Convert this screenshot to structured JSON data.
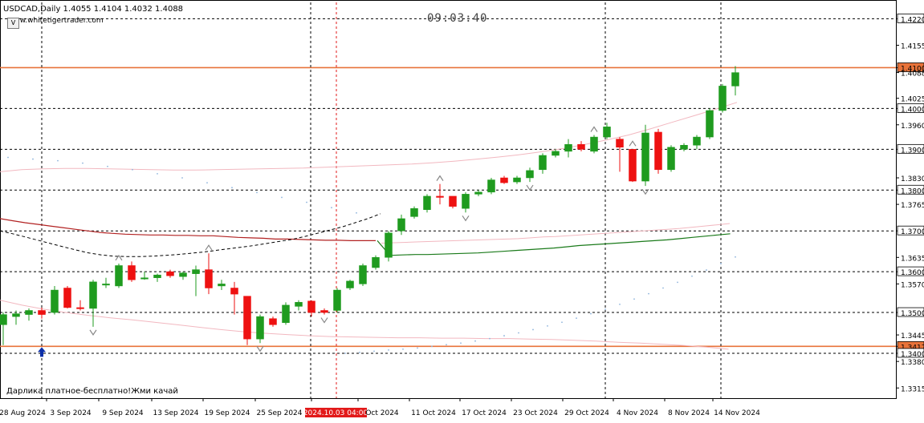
{
  "header": {
    "symbol_info": "USDCAD,Daily  1.4055 1.4104 1.4032 1.4088",
    "website": "www.whitetigertrader.com",
    "clock": "09:03:40",
    "promo": "Дарлика платное-бесплатно!Жми качай",
    "menu_button": "V"
  },
  "colors": {
    "bull": "#1f9b1f",
    "bear": "#ee1111",
    "background": "#ffffff",
    "grid": "#000000",
    "level_line": "#e8733a",
    "ma_red": "#b22222",
    "ma_green": "#1a7a1a",
    "band_pink": "#f2b8c0",
    "dots_blue": "#8fb4dc",
    "price_box_bg": "#ffffff",
    "time_highlight_bg": "#e21a1a"
  },
  "price_axis": {
    "labels": [
      {
        "value": 1.422,
        "label": "1.4220",
        "boxed": true
      },
      {
        "value": 1.4155,
        "label": "1.4155",
        "boxed": false
      },
      {
        "value": 1.41,
        "label": "1.4100",
        "boxed": true
      },
      {
        "value": 1.4088,
        "label": "1.4088",
        "boxed": false
      },
      {
        "value": 1.4025,
        "label": "1.4025",
        "boxed": false
      },
      {
        "value": 1.4,
        "label": "1.4000",
        "boxed": true
      },
      {
        "value": 1.396,
        "label": "1.3960",
        "boxed": false
      },
      {
        "value": 1.39,
        "label": "1.3900",
        "boxed": true
      },
      {
        "value": 1.383,
        "label": "1.3830",
        "boxed": false
      },
      {
        "value": 1.38,
        "label": "1.3800",
        "boxed": true
      },
      {
        "value": 1.3765,
        "label": "1.3765",
        "boxed": false
      },
      {
        "value": 1.37,
        "label": "1.3700",
        "boxed": true
      },
      {
        "value": 1.3635,
        "label": "1.3635",
        "boxed": false
      },
      {
        "value": 1.36,
        "label": "1.3600",
        "boxed": true
      },
      {
        "value": 1.357,
        "label": "1.3570",
        "boxed": false
      },
      {
        "value": 1.35,
        "label": "1.3500",
        "boxed": true
      },
      {
        "value": 1.3445,
        "label": "1.3445",
        "boxed": false
      },
      {
        "value": 1.3417,
        "label": "1.3417",
        "boxed": true
      },
      {
        "value": 1.34,
        "label": "1.3400",
        "boxed": true
      },
      {
        "value": 1.338,
        "label": "1.3380",
        "boxed": false
      },
      {
        "value": 1.3315,
        "label": "1.3315",
        "boxed": false
      }
    ],
    "grid_levels": [
      1.422,
      1.4,
      1.39,
      1.38,
      1.37,
      1.36,
      1.35,
      1.34
    ],
    "orange_levels": [
      1.41,
      1.3417
    ]
  },
  "time_axis": {
    "labels": [
      "28 Aug 2024",
      "3 Sep 2024",
      "9 Sep 2024",
      "13 Sep 2024",
      "19 Sep 2024",
      "25 Sep 2024",
      "2024.10.03 04:00",
      "Oct 2024",
      "11 Oct 2024",
      "17 Oct 2024",
      "23 Oct 2024",
      "29 Oct 2024",
      "4 Nov 2024",
      "8 Nov 2024",
      "14 Nov 2024"
    ],
    "highlight_label": "2024.10.03 04:00",
    "vertical_grid_labels": [
      "3 Sep 2024",
      "25 Sep 2024",
      "29 Oct 2024",
      "14 Nov 2024"
    ],
    "crosshair_label": "2024.10.03 04:00"
  },
  "chart_data": {
    "type": "candlestick",
    "title": "USDCAD,Daily",
    "ylim": [
      1.329,
      1.426
    ],
    "candles": [
      {
        "o": 1.347,
        "h": 1.35,
        "l": 1.342,
        "c": 1.3495
      },
      {
        "o": 1.349,
        "h": 1.3505,
        "l": 1.347,
        "c": 1.3497
      },
      {
        "o": 1.3495,
        "h": 1.351,
        "l": 1.348,
        "c": 1.3505
      },
      {
        "o": 1.3505,
        "h": 1.3512,
        "l": 1.3485,
        "c": 1.3495
      },
      {
        "o": 1.35,
        "h": 1.3565,
        "l": 1.3495,
        "c": 1.3555
      },
      {
        "o": 1.356,
        "h": 1.3565,
        "l": 1.351,
        "c": 1.3512
      },
      {
        "o": 1.3512,
        "h": 1.353,
        "l": 1.3505,
        "c": 1.351
      },
      {
        "o": 1.351,
        "h": 1.358,
        "l": 1.3465,
        "c": 1.3575
      },
      {
        "o": 1.357,
        "h": 1.3585,
        "l": 1.356,
        "c": 1.357
      },
      {
        "o": 1.3565,
        "h": 1.362,
        "l": 1.356,
        "c": 1.3615
      },
      {
        "o": 1.3615,
        "h": 1.3625,
        "l": 1.3575,
        "c": 1.358
      },
      {
        "o": 1.3583,
        "h": 1.36,
        "l": 1.358,
        "c": 1.3585
      },
      {
        "o": 1.3585,
        "h": 1.3595,
        "l": 1.3575,
        "c": 1.3592
      },
      {
        "o": 1.36,
        "h": 1.3605,
        "l": 1.3585,
        "c": 1.359
      },
      {
        "o": 1.3588,
        "h": 1.36,
        "l": 1.358,
        "c": 1.3597
      },
      {
        "o": 1.3595,
        "h": 1.3615,
        "l": 1.354,
        "c": 1.3605
      },
      {
        "o": 1.3605,
        "h": 1.3645,
        "l": 1.3545,
        "c": 1.356
      },
      {
        "o": 1.3565,
        "h": 1.358,
        "l": 1.3555,
        "c": 1.357
      },
      {
        "o": 1.356,
        "h": 1.3575,
        "l": 1.3495,
        "c": 1.3545
      },
      {
        "o": 1.354,
        "h": 1.354,
        "l": 1.342,
        "c": 1.3435
      },
      {
        "o": 1.3435,
        "h": 1.3495,
        "l": 1.3425,
        "c": 1.349
      },
      {
        "o": 1.3485,
        "h": 1.349,
        "l": 1.3465,
        "c": 1.347
      },
      {
        "o": 1.3475,
        "h": 1.3525,
        "l": 1.347,
        "c": 1.3518
      },
      {
        "o": 1.3515,
        "h": 1.353,
        "l": 1.3505,
        "c": 1.3525
      },
      {
        "o": 1.3528,
        "h": 1.353,
        "l": 1.349,
        "c": 1.35
      },
      {
        "o": 1.3505,
        "h": 1.351,
        "l": 1.3495,
        "c": 1.35
      },
      {
        "o": 1.3505,
        "h": 1.356,
        "l": 1.35,
        "c": 1.3555
      },
      {
        "o": 1.356,
        "h": 1.358,
        "l": 1.3555,
        "c": 1.3577
      },
      {
        "o": 1.357,
        "h": 1.362,
        "l": 1.3565,
        "c": 1.3615
      },
      {
        "o": 1.361,
        "h": 1.364,
        "l": 1.3605,
        "c": 1.3635
      },
      {
        "o": 1.3635,
        "h": 1.37,
        "l": 1.3625,
        "c": 1.3695
      },
      {
        "o": 1.37,
        "h": 1.374,
        "l": 1.369,
        "c": 1.373
      },
      {
        "o": 1.3735,
        "h": 1.376,
        "l": 1.373,
        "c": 1.3755
      },
      {
        "o": 1.3752,
        "h": 1.379,
        "l": 1.3745,
        "c": 1.3785
      },
      {
        "o": 1.3785,
        "h": 1.3815,
        "l": 1.3765,
        "c": 1.3782
      },
      {
        "o": 1.3785,
        "h": 1.378,
        "l": 1.3755,
        "c": 1.376
      },
      {
        "o": 1.3755,
        "h": 1.3795,
        "l": 1.3745,
        "c": 1.379
      },
      {
        "o": 1.379,
        "h": 1.38,
        "l": 1.3785,
        "c": 1.3795
      },
      {
        "o": 1.3795,
        "h": 1.383,
        "l": 1.379,
        "c": 1.3825
      },
      {
        "o": 1.383,
        "h": 1.3835,
        "l": 1.3815,
        "c": 1.3818
      },
      {
        "o": 1.382,
        "h": 1.3835,
        "l": 1.3815,
        "c": 1.383
      },
      {
        "o": 1.383,
        "h": 1.3855,
        "l": 1.382,
        "c": 1.3848
      },
      {
        "o": 1.385,
        "h": 1.389,
        "l": 1.384,
        "c": 1.3885
      },
      {
        "o": 1.3885,
        "h": 1.39,
        "l": 1.388,
        "c": 1.3895
      },
      {
        "o": 1.3895,
        "h": 1.3925,
        "l": 1.388,
        "c": 1.3912
      },
      {
        "o": 1.3912,
        "h": 1.392,
        "l": 1.3895,
        "c": 1.39
      },
      {
        "o": 1.3895,
        "h": 1.3935,
        "l": 1.389,
        "c": 1.393
      },
      {
        "o": 1.393,
        "h": 1.3965,
        "l": 1.3925,
        "c": 1.3955
      },
      {
        "o": 1.3925,
        "h": 1.393,
        "l": 1.3845,
        "c": 1.3905
      },
      {
        "o": 1.39,
        "h": 1.39,
        "l": 1.382,
        "c": 1.3822
      },
      {
        "o": 1.3822,
        "h": 1.396,
        "l": 1.381,
        "c": 1.394
      },
      {
        "o": 1.3942,
        "h": 1.395,
        "l": 1.384,
        "c": 1.385
      },
      {
        "o": 1.385,
        "h": 1.391,
        "l": 1.3845,
        "c": 1.3905
      },
      {
        "o": 1.39,
        "h": 1.3915,
        "l": 1.3895,
        "c": 1.391
      },
      {
        "o": 1.391,
        "h": 1.3935,
        "l": 1.39,
        "c": 1.393
      },
      {
        "o": 1.393,
        "h": 1.4,
        "l": 1.3925,
        "c": 1.3995
      },
      {
        "o": 1.3995,
        "h": 1.406,
        "l": 1.399,
        "c": 1.4055
      },
      {
        "o": 1.4055,
        "h": 1.4104,
        "l": 1.4032,
        "c": 1.4088
      }
    ],
    "ma_red_points": [
      1.373,
      1.3725,
      1.372,
      1.3716,
      1.3712,
      1.3708,
      1.3704,
      1.37,
      1.3696,
      1.3694,
      1.3692,
      1.3691,
      1.369,
      1.369,
      1.3689,
      1.3689,
      1.3688,
      1.3688,
      1.3686,
      1.3684,
      1.3683,
      1.3682,
      1.368,
      1.368,
      1.3679,
      1.3678,
      1.3677,
      1.3677,
      1.3676,
      1.3676,
      1.3676
    ],
    "ma_green_points": [
      1.3676,
      1.364,
      1.3641,
      1.3642,
      1.3642,
      1.3643,
      1.3644,
      1.3645,
      1.3646,
      1.3648,
      1.365,
      1.3652,
      1.3654,
      1.3656,
      1.3658,
      1.3661,
      1.3664,
      1.3666,
      1.3668,
      1.367,
      1.3672,
      1.3674,
      1.3676,
      1.3678,
      1.3681,
      1.3684,
      1.3687,
      1.369,
      1.3693
    ],
    "ma_black_dashed_points": [
      1.37,
      1.3693,
      1.3685,
      1.3677,
      1.3669,
      1.3661,
      1.3653,
      1.3646,
      1.3641,
      1.3638,
      1.3637,
      1.3637,
      1.3638,
      1.364,
      1.3642,
      1.3645,
      1.3648,
      1.3652,
      1.3656,
      1.366,
      1.3664,
      1.3669,
      1.3674,
      1.3679,
      1.3686,
      1.3694,
      1.3702,
      1.371,
      1.372,
      1.373,
      1.3742
    ],
    "band_upper_points": [
      1.3845,
      1.385,
      1.3852,
      1.3853,
      1.3853,
      1.3852,
      1.3851,
      1.385,
      1.3849,
      1.3849,
      1.385,
      1.3851,
      1.3852,
      1.3853,
      1.3854,
      1.3856,
      1.3858,
      1.386,
      1.3862,
      1.3864,
      1.3867,
      1.3871,
      1.3876,
      1.3881,
      1.3887,
      1.3894,
      1.3902,
      1.3912,
      1.3923,
      1.3935,
      1.395,
      1.3966,
      1.3982,
      1.3998,
      1.4015
    ],
    "band_lower_points": [
      1.353,
      1.3518,
      1.3508,
      1.35,
      1.3493,
      1.3487,
      1.3482,
      1.3476,
      1.347,
      1.3464,
      1.3458,
      1.3453,
      1.3449,
      1.3446,
      1.3443,
      1.3441,
      1.344,
      1.3439,
      1.3438,
      1.3438,
      1.3437,
      1.3437,
      1.3436,
      1.3436,
      1.3435,
      1.3434,
      1.3432,
      1.343,
      1.3427,
      1.3425,
      1.3422,
      1.3419,
      1.3415,
      1.341
    ],
    "band_mid_points": [
      1.367,
      1.3671,
      1.3672,
      1.3673,
      1.3674,
      1.3675,
      1.3676,
      1.3677,
      1.3678,
      1.3679,
      1.368,
      1.3681,
      1.3683,
      1.3685,
      1.3686,
      1.3688,
      1.369,
      1.3692,
      1.3694,
      1.3696,
      1.3698,
      1.37,
      1.3702,
      1.3704,
      1.3706,
      1.3709,
      1.3712,
      1.3715,
      1.3718
    ],
    "blue_dots_upper": [
      1.388,
      1.3876,
      1.3872,
      1.3866,
      1.3858,
      1.385,
      1.384,
      1.383,
      1.3818,
      1.3806,
      1.3794,
      1.3782,
      1.377,
      1.3757,
      1.3744
    ],
    "blue_dots_lower": [
      1.34,
      1.3402,
      1.3405,
      1.3408,
      1.341,
      1.3413,
      1.3417,
      1.3421,
      1.3425,
      1.343,
      1.3436,
      1.3443,
      1.345,
      1.3458,
      1.3467,
      1.3476,
      1.3486,
      1.3497,
      1.3508,
      1.352,
      1.3533,
      1.3546,
      1.356,
      1.3574,
      1.3589,
      1.3604,
      1.362,
      1.3636
    ],
    "fractals_up": [
      9,
      16,
      34,
      46,
      49
    ],
    "fractals_down": [
      7,
      20,
      25,
      36,
      41,
      50
    ],
    "buy_arrow_index": 3
  }
}
